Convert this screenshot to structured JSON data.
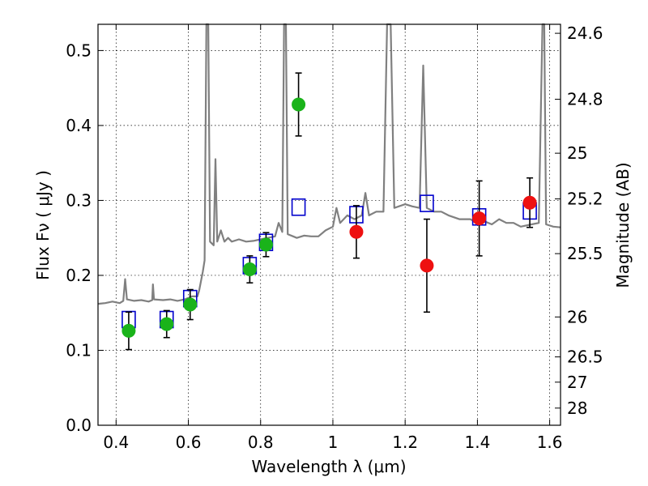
{
  "chart_data": {
    "type": "scatter",
    "xlabel": "Wavelength  λ (μm)",
    "ylabel": "Flux  Fν  ( μJy )",
    "ylabel_right": "Magnitude (AB)",
    "xlim": [
      0.35,
      1.63
    ],
    "ylim": [
      0.0,
      0.535
    ],
    "grid": true,
    "x_ticks": [
      {
        "value": 0.4,
        "label": "0.4"
      },
      {
        "value": 0.6,
        "label": "0.6"
      },
      {
        "value": 0.8,
        "label": "0.8"
      },
      {
        "value": 1.0,
        "label": "1"
      },
      {
        "value": 1.2,
        "label": "1.2"
      },
      {
        "value": 1.4,
        "label": "1.4"
      },
      {
        "value": 1.6,
        "label": "1.6"
      }
    ],
    "y_ticks": [
      {
        "value": 0.0,
        "label": "0.0"
      },
      {
        "value": 0.1,
        "label": "0.1"
      },
      {
        "value": 0.2,
        "label": "0.2"
      },
      {
        "value": 0.3,
        "label": "0.3"
      },
      {
        "value": 0.4,
        "label": "0.4"
      },
      {
        "value": 0.5,
        "label": "0.5"
      }
    ],
    "right_ticks": [
      {
        "label": "24.6",
        "flux": 0.523
      },
      {
        "label": "24.8",
        "flux": 0.435
      },
      {
        "label": "25",
        "flux": 0.363
      },
      {
        "label": "25.2",
        "flux": 0.302
      },
      {
        "label": "25.5",
        "flux": 0.229
      },
      {
        "label": "26",
        "flux": 0.1445
      },
      {
        "label": "26.5",
        "flux": 0.0912
      },
      {
        "label": "27",
        "flux": 0.0575
      },
      {
        "label": "28",
        "flux": 0.0229
      }
    ],
    "series": [
      {
        "name": "model_spectrum",
        "kind": "line",
        "color": "#808080",
        "points": [
          [
            0.35,
            0.162
          ],
          [
            0.37,
            0.163
          ],
          [
            0.39,
            0.165
          ],
          [
            0.41,
            0.163
          ],
          [
            0.42,
            0.166
          ],
          [
            0.425,
            0.195
          ],
          [
            0.43,
            0.168
          ],
          [
            0.45,
            0.166
          ],
          [
            0.47,
            0.167
          ],
          [
            0.49,
            0.165
          ],
          [
            0.5,
            0.167
          ],
          [
            0.502,
            0.188
          ],
          [
            0.505,
            0.168
          ],
          [
            0.53,
            0.167
          ],
          [
            0.55,
            0.168
          ],
          [
            0.57,
            0.166
          ],
          [
            0.59,
            0.168
          ],
          [
            0.61,
            0.172
          ],
          [
            0.625,
            0.172
          ],
          [
            0.63,
            0.18
          ],
          [
            0.64,
            0.205
          ],
          [
            0.645,
            0.22
          ],
          [
            0.65,
            0.535
          ],
          [
            0.655,
            0.535
          ],
          [
            0.66,
            0.245
          ],
          [
            0.67,
            0.24
          ],
          [
            0.675,
            0.355
          ],
          [
            0.68,
            0.245
          ],
          [
            0.69,
            0.26
          ],
          [
            0.7,
            0.245
          ],
          [
            0.71,
            0.25
          ],
          [
            0.72,
            0.245
          ],
          [
            0.74,
            0.248
          ],
          [
            0.76,
            0.245
          ],
          [
            0.78,
            0.246
          ],
          [
            0.8,
            0.248
          ],
          [
            0.82,
            0.25
          ],
          [
            0.84,
            0.252
          ],
          [
            0.85,
            0.27
          ],
          [
            0.86,
            0.258
          ],
          [
            0.865,
            0.535
          ],
          [
            0.87,
            0.535
          ],
          [
            0.875,
            0.255
          ],
          [
            0.89,
            0.252
          ],
          [
            0.9,
            0.25
          ],
          [
            0.92,
            0.253
          ],
          [
            0.94,
            0.252
          ],
          [
            0.96,
            0.252
          ],
          [
            0.98,
            0.26
          ],
          [
            1.0,
            0.265
          ],
          [
            1.01,
            0.29
          ],
          [
            1.02,
            0.27
          ],
          [
            1.04,
            0.28
          ],
          [
            1.06,
            0.275
          ],
          [
            1.08,
            0.28
          ],
          [
            1.09,
            0.31
          ],
          [
            1.1,
            0.28
          ],
          [
            1.12,
            0.285
          ],
          [
            1.14,
            0.285
          ],
          [
            1.15,
            0.535
          ],
          [
            1.16,
            0.535
          ],
          [
            1.17,
            0.29
          ],
          [
            1.2,
            0.295
          ],
          [
            1.22,
            0.292
          ],
          [
            1.24,
            0.29
          ],
          [
            1.25,
            0.48
          ],
          [
            1.26,
            0.29
          ],
          [
            1.28,
            0.285
          ],
          [
            1.3,
            0.285
          ],
          [
            1.32,
            0.28
          ],
          [
            1.35,
            0.275
          ],
          [
            1.38,
            0.275
          ],
          [
            1.4,
            0.27
          ],
          [
            1.42,
            0.272
          ],
          [
            1.44,
            0.268
          ],
          [
            1.46,
            0.275
          ],
          [
            1.48,
            0.27
          ],
          [
            1.5,
            0.27
          ],
          [
            1.52,
            0.265
          ],
          [
            1.55,
            0.268
          ],
          [
            1.57,
            0.27
          ],
          [
            1.58,
            0.535
          ],
          [
            1.585,
            0.535
          ],
          [
            1.59,
            0.268
          ],
          [
            1.61,
            0.265
          ],
          [
            1.63,
            0.264
          ]
        ]
      },
      {
        "name": "model_photometry",
        "kind": "square",
        "color": "#0000cc",
        "points": [
          [
            0.435,
            0.141
          ],
          [
            0.54,
            0.141
          ],
          [
            0.605,
            0.169
          ],
          [
            0.77,
            0.213
          ],
          [
            0.815,
            0.244
          ],
          [
            0.905,
            0.291
          ],
          [
            1.065,
            0.281
          ],
          [
            1.26,
            0.296
          ],
          [
            1.405,
            0.278
          ],
          [
            1.545,
            0.286
          ]
        ]
      },
      {
        "name": "observed_green",
        "kind": "circle",
        "color": "#1ab31a",
        "points": [
          [
            0.435,
            0.126,
            0.025
          ],
          [
            0.54,
            0.135,
            0.018
          ],
          [
            0.605,
            0.161,
            0.02
          ],
          [
            0.77,
            0.208,
            0.018
          ],
          [
            0.815,
            0.241,
            0.016
          ],
          [
            0.905,
            0.428,
            0.042
          ]
        ]
      },
      {
        "name": "observed_red",
        "kind": "circle",
        "color": "#ee1111",
        "points": [
          [
            1.065,
            0.258,
            0.035
          ],
          [
            1.26,
            0.213,
            0.062
          ],
          [
            1.405,
            0.276,
            0.05
          ],
          [
            1.545,
            0.297,
            0.033
          ]
        ]
      }
    ]
  }
}
